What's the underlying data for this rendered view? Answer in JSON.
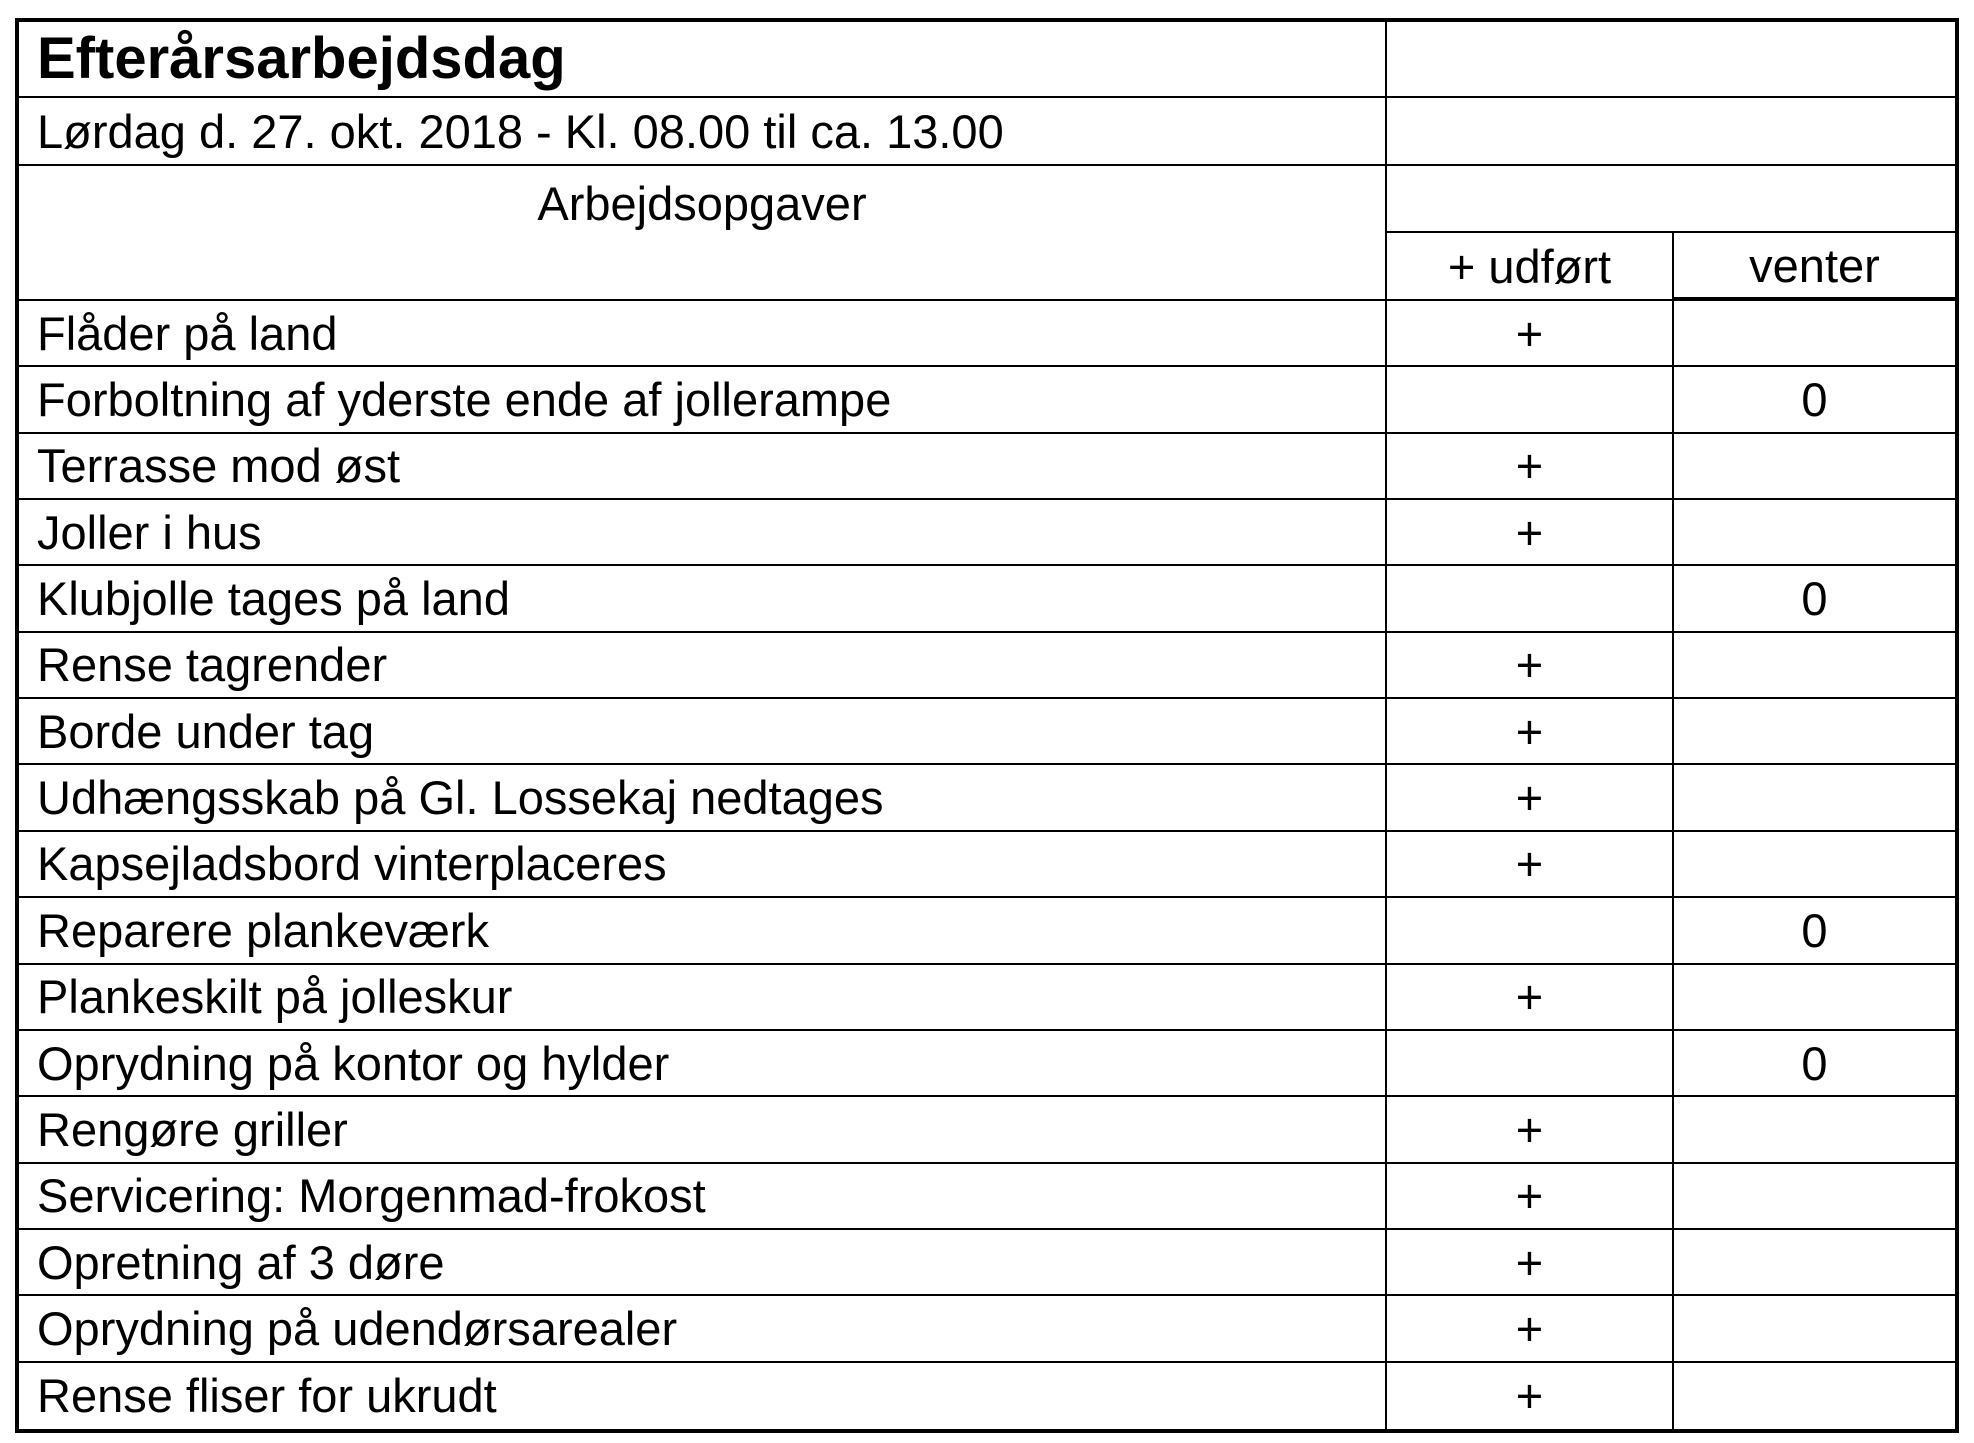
{
  "title": "Efterårsarbejdsdag",
  "subtitle": "Lørdag d. 27. okt. 2018 - Kl. 08.00 til ca. 13.00",
  "header": {
    "tasks": "Arbejdsopgaver",
    "done": "+ udført",
    "pending": "venter"
  },
  "tasks": [
    {
      "name": "Flåder på land",
      "done": "+",
      "pending": ""
    },
    {
      "name": "Forboltning af yderste ende af jollerampe",
      "done": "",
      "pending": "0"
    },
    {
      "name": "Terrasse mod øst",
      "done": "+",
      "pending": ""
    },
    {
      "name": "Joller i hus",
      "done": "+",
      "pending": ""
    },
    {
      "name": "Klubjolle tages på land",
      "done": "",
      "pending": "0"
    },
    {
      "name": "Rense tagrender",
      "done": "+",
      "pending": ""
    },
    {
      "name": "Borde under tag",
      "done": "+",
      "pending": ""
    },
    {
      "name": "Udhængsskab på Gl. Lossekaj nedtages",
      "done": "+",
      "pending": ""
    },
    {
      "name": "Kapsejladsbord vinterplaceres",
      "done": "+",
      "pending": ""
    },
    {
      "name": "Reparere plankeværk",
      "done": "",
      "pending": "0"
    },
    {
      "name": "Plankeskilt på jolleskur",
      "done": "+",
      "pending": ""
    },
    {
      "name": "Oprydning på kontor og hylder",
      "done": "",
      "pending": "0"
    },
    {
      "name": "Rengøre griller",
      "done": "+",
      "pending": ""
    },
    {
      "name": "Servicering: Morgenmad-frokost",
      "done": "+",
      "pending": ""
    },
    {
      "name": "Opretning af 3 døre",
      "done": "+",
      "pending": ""
    },
    {
      "name": "Oprydning på udendørsarealer",
      "done": "+",
      "pending": ""
    },
    {
      "name": "Rense fliser for ukrudt",
      "done": "+",
      "pending": ""
    }
  ]
}
